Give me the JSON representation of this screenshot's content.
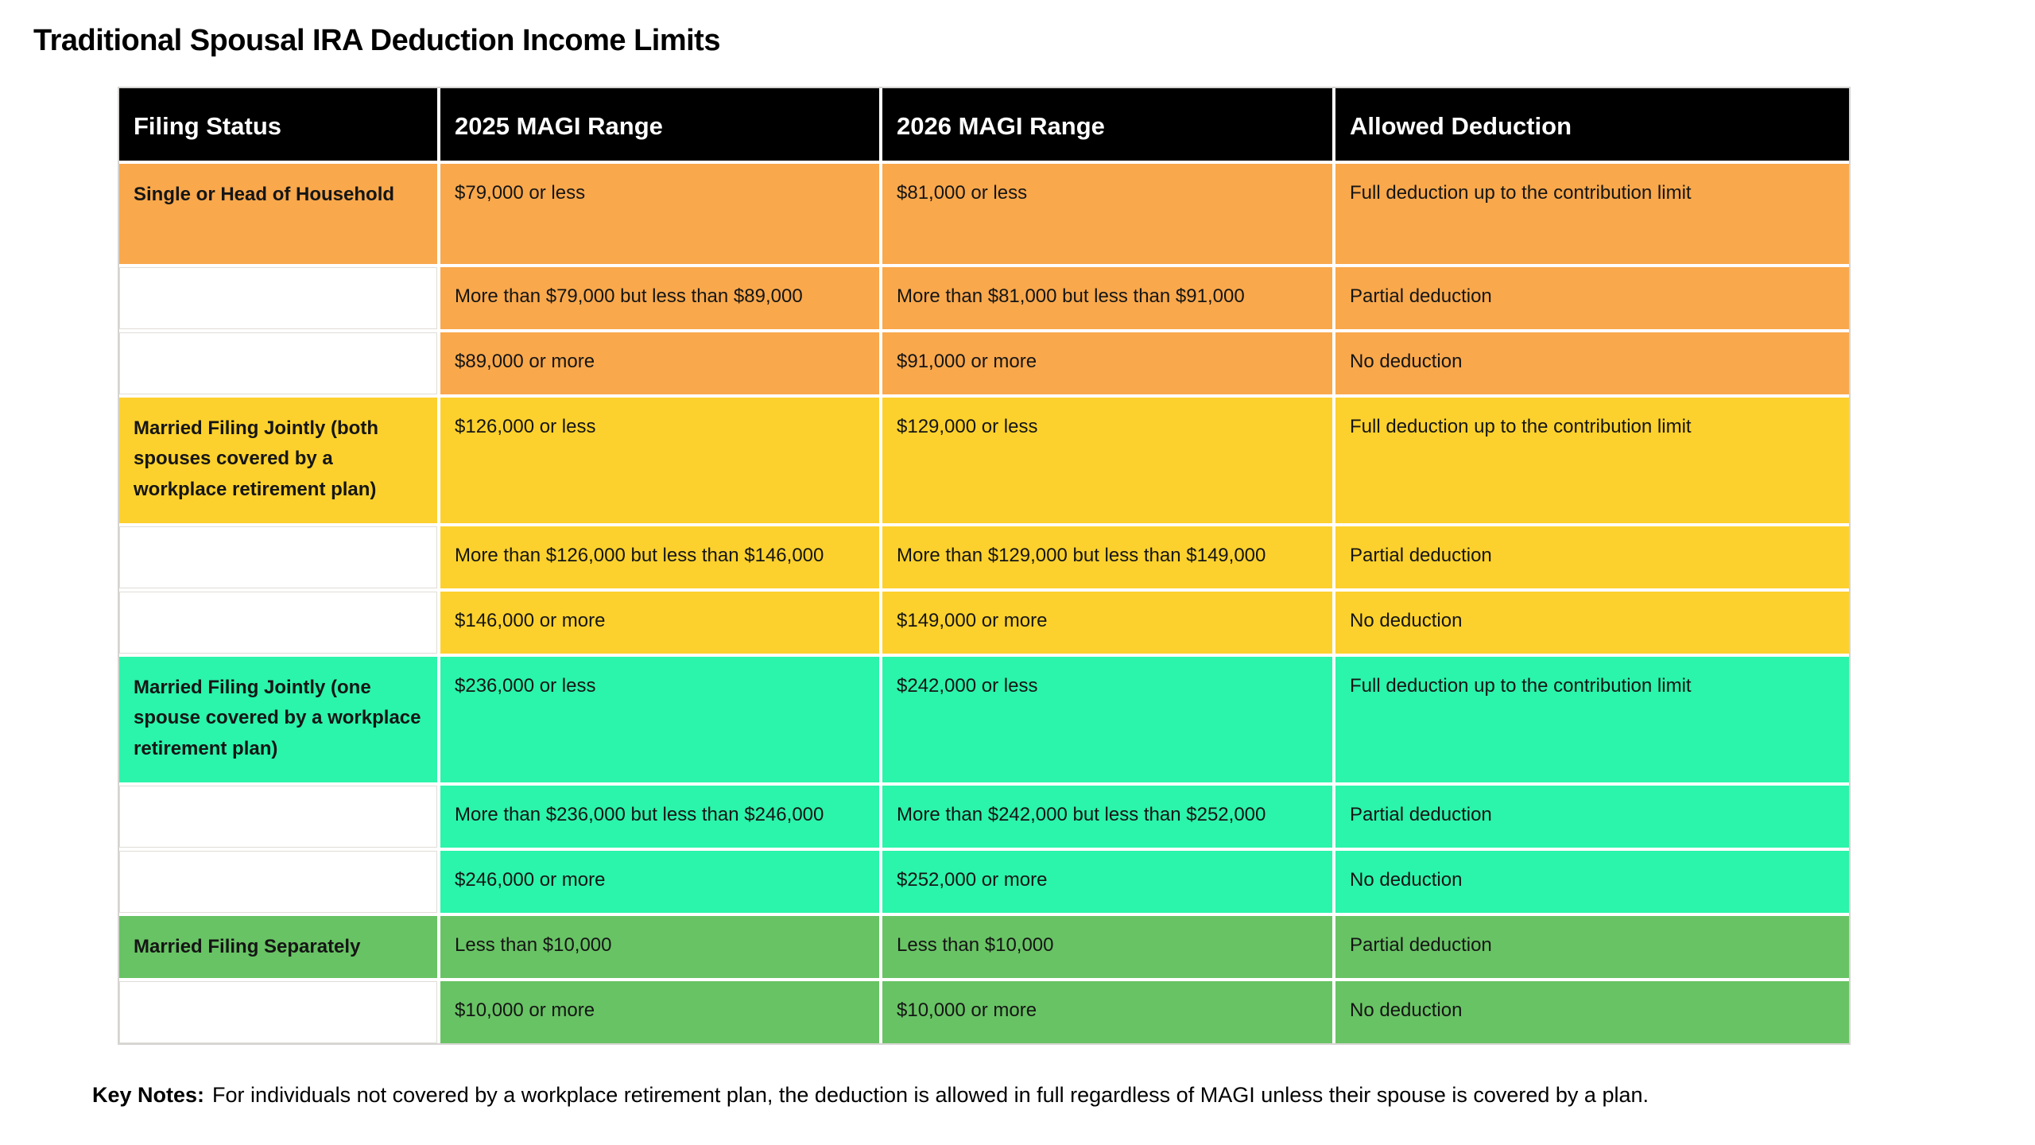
{
  "title": "Traditional Spousal IRA Deduction Income Limits",
  "table": {
    "columns": [
      "Filing Status",
      "2025 MAGI Range",
      "2026 MAGI Range",
      "Allowed Deduction"
    ],
    "rows": [
      {
        "group": "orange",
        "filing_status": "Single or Head of Household",
        "magi_2025": "$79,000 or less",
        "magi_2026": "$81,000 or less",
        "deduction": "Full deduction up to the contribution limit"
      },
      {
        "group": "orange",
        "filing_status": "",
        "magi_2025": "More than $79,000 but less than $89,000",
        "magi_2026": "More than $81,000 but less than $91,000",
        "deduction": "Partial deduction"
      },
      {
        "group": "orange",
        "filing_status": "",
        "magi_2025": "$89,000 or more",
        "magi_2026": "$91,000 or more",
        "deduction": "No deduction"
      },
      {
        "group": "yellow",
        "filing_status": "Married Filing Jointly (both spouses covered by a workplace retirement plan)",
        "magi_2025": "$126,000 or less",
        "magi_2026": "$129,000 or less",
        "deduction": "Full deduction up to the contribution limit"
      },
      {
        "group": "yellow",
        "filing_status": "",
        "magi_2025": "More than $126,000 but less than $146,000",
        "magi_2026": "More than $129,000 but less than $149,000",
        "deduction": "Partial deduction"
      },
      {
        "group": "yellow",
        "filing_status": "",
        "magi_2025": "$146,000 or more",
        "magi_2026": "$149,000 or more",
        "deduction": "No deduction"
      },
      {
        "group": "teal",
        "filing_status": "Married Filing Jointly (one spouse covered by a workplace retirement plan)",
        "magi_2025": "$236,000 or less",
        "magi_2026": "$242,000 or less",
        "deduction": "Full deduction up to the contribution limit"
      },
      {
        "group": "teal",
        "filing_status": "",
        "magi_2025": "More than $236,000 but less than $246,000",
        "magi_2026": "More than $242,000 but less than $252,000",
        "deduction": "Partial deduction"
      },
      {
        "group": "teal",
        "filing_status": "",
        "magi_2025": "$246,000 or more",
        "magi_2026": "$252,000 or more",
        "deduction": "No deduction"
      },
      {
        "group": "green",
        "filing_status": "Married Filing Separately",
        "magi_2025": "Less than $10,000",
        "magi_2026": "Less than $10,000",
        "deduction": "Partial deduction"
      },
      {
        "group": "green",
        "filing_status": "",
        "magi_2025": "$10,000 or more",
        "magi_2026": "$10,000 or more",
        "deduction": "No deduction"
      }
    ]
  },
  "key_notes": {
    "label": "Key Notes:",
    "text": "For individuals not covered by a workplace retirement plan, the deduction is allowed in full regardless of MAGI unless their spouse is covered by a plan."
  },
  "colors": {
    "orange": "#F9A84C",
    "yellow": "#FDD12D",
    "teal": "#2BF4AB",
    "green": "#68C364",
    "header_bg": "#000000",
    "header_text": "#FFFFFF"
  }
}
